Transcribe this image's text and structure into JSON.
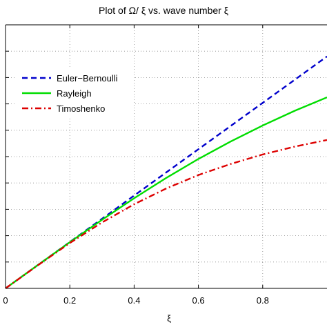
{
  "chart_data": {
    "type": "line",
    "title": "Plot of Ω/ ξ vs. wave number ξ",
    "xlabel": "ξ",
    "ylabel": "",
    "xlim": [
      0,
      1.0
    ],
    "ylim": [
      0,
      1.0
    ],
    "xticks": [
      0,
      0.2,
      0.4,
      0.6,
      0.8
    ],
    "xtick_labels": [
      "0",
      "0.2",
      "0.4",
      "0.6",
      "0.8"
    ],
    "yticks": [
      0,
      0.1,
      0.2,
      0.3,
      0.4,
      0.5,
      0.6,
      0.7,
      0.8,
      0.9
    ],
    "grid": true,
    "legend_position": "upper-left",
    "series": [
      {
        "name": "Euler−Bernoulli",
        "color": "#0000cc",
        "style": "dashed",
        "x": [
          0,
          0.1,
          0.2,
          0.3,
          0.4,
          0.5,
          0.6,
          0.7,
          0.8,
          0.9,
          1.0
        ],
        "y": [
          0.0,
          0.088,
          0.176,
          0.264,
          0.352,
          0.44,
          0.528,
          0.616,
          0.704,
          0.792,
          0.88
        ]
      },
      {
        "name": "Rayleigh",
        "color": "#00dd00",
        "style": "solid",
        "x": [
          0,
          0.1,
          0.2,
          0.3,
          0.4,
          0.5,
          0.6,
          0.7,
          0.8,
          0.9,
          1.0
        ],
        "y": [
          0.0,
          0.088,
          0.175,
          0.26,
          0.342,
          0.419,
          0.491,
          0.557,
          0.618,
          0.674,
          0.725
        ]
      },
      {
        "name": "Timoshenko",
        "color": "#dd0000",
        "style": "dashdot",
        "x": [
          0,
          0.1,
          0.2,
          0.3,
          0.4,
          0.5,
          0.6,
          0.7,
          0.8,
          0.9,
          1.0
        ],
        "y": [
          0.0,
          0.087,
          0.172,
          0.25,
          0.319,
          0.379,
          0.43,
          0.472,
          0.508,
          0.538,
          0.563
        ]
      }
    ]
  }
}
